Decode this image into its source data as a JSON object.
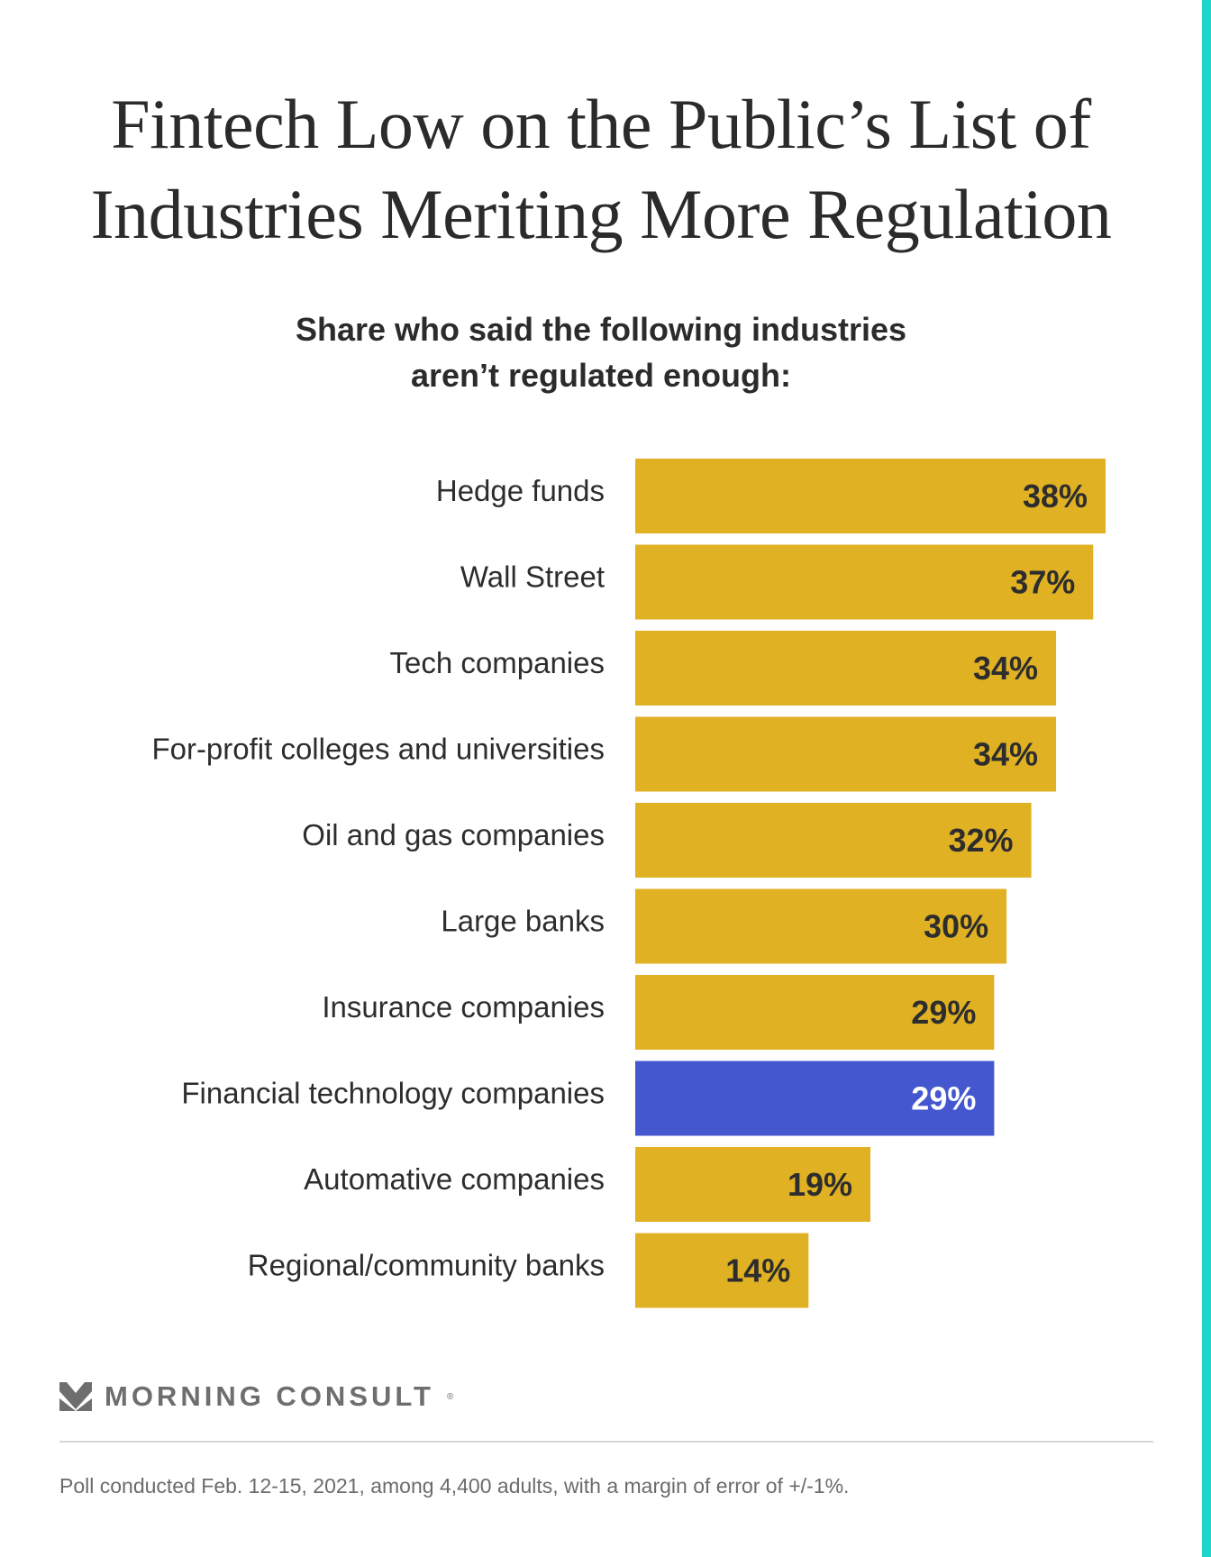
{
  "colors": {
    "bar": "#e1b124",
    "highlight": "#4557cf",
    "accent": "#1ed6cc",
    "text": "#2d2d2d"
  },
  "chart_data": {
    "type": "bar",
    "orientation": "horizontal",
    "title": "Fintech Low on the Public’s List of Industries Meriting More Regulation",
    "title_lines": [
      "Fintech Low on the Public’s List of",
      "Industries Meriting More Regulation"
    ],
    "subtitle_lines": [
      "Share who said the following industries",
      "aren’t regulated enough:"
    ],
    "categories": [
      "Hedge funds",
      "Wall Street",
      "Tech companies",
      "For-profit colleges and universities",
      "Oil and gas companies",
      "Large banks",
      "Insurance companies",
      "Financial technology companies",
      "Automative companies",
      "Regional/community banks"
    ],
    "values": [
      38,
      37,
      34,
      34,
      32,
      30,
      29,
      29,
      19,
      14
    ],
    "highlight_index": 7,
    "unit": "%",
    "xlim": [
      0,
      38
    ],
    "grid": false,
    "xlabel": "",
    "ylabel": ""
  },
  "footer": {
    "logo_text": "MORNING CONSULT",
    "note": "Poll conducted Feb. 12-15, 2021, among 4,400 adults, with a margin of error of +/-1%."
  }
}
